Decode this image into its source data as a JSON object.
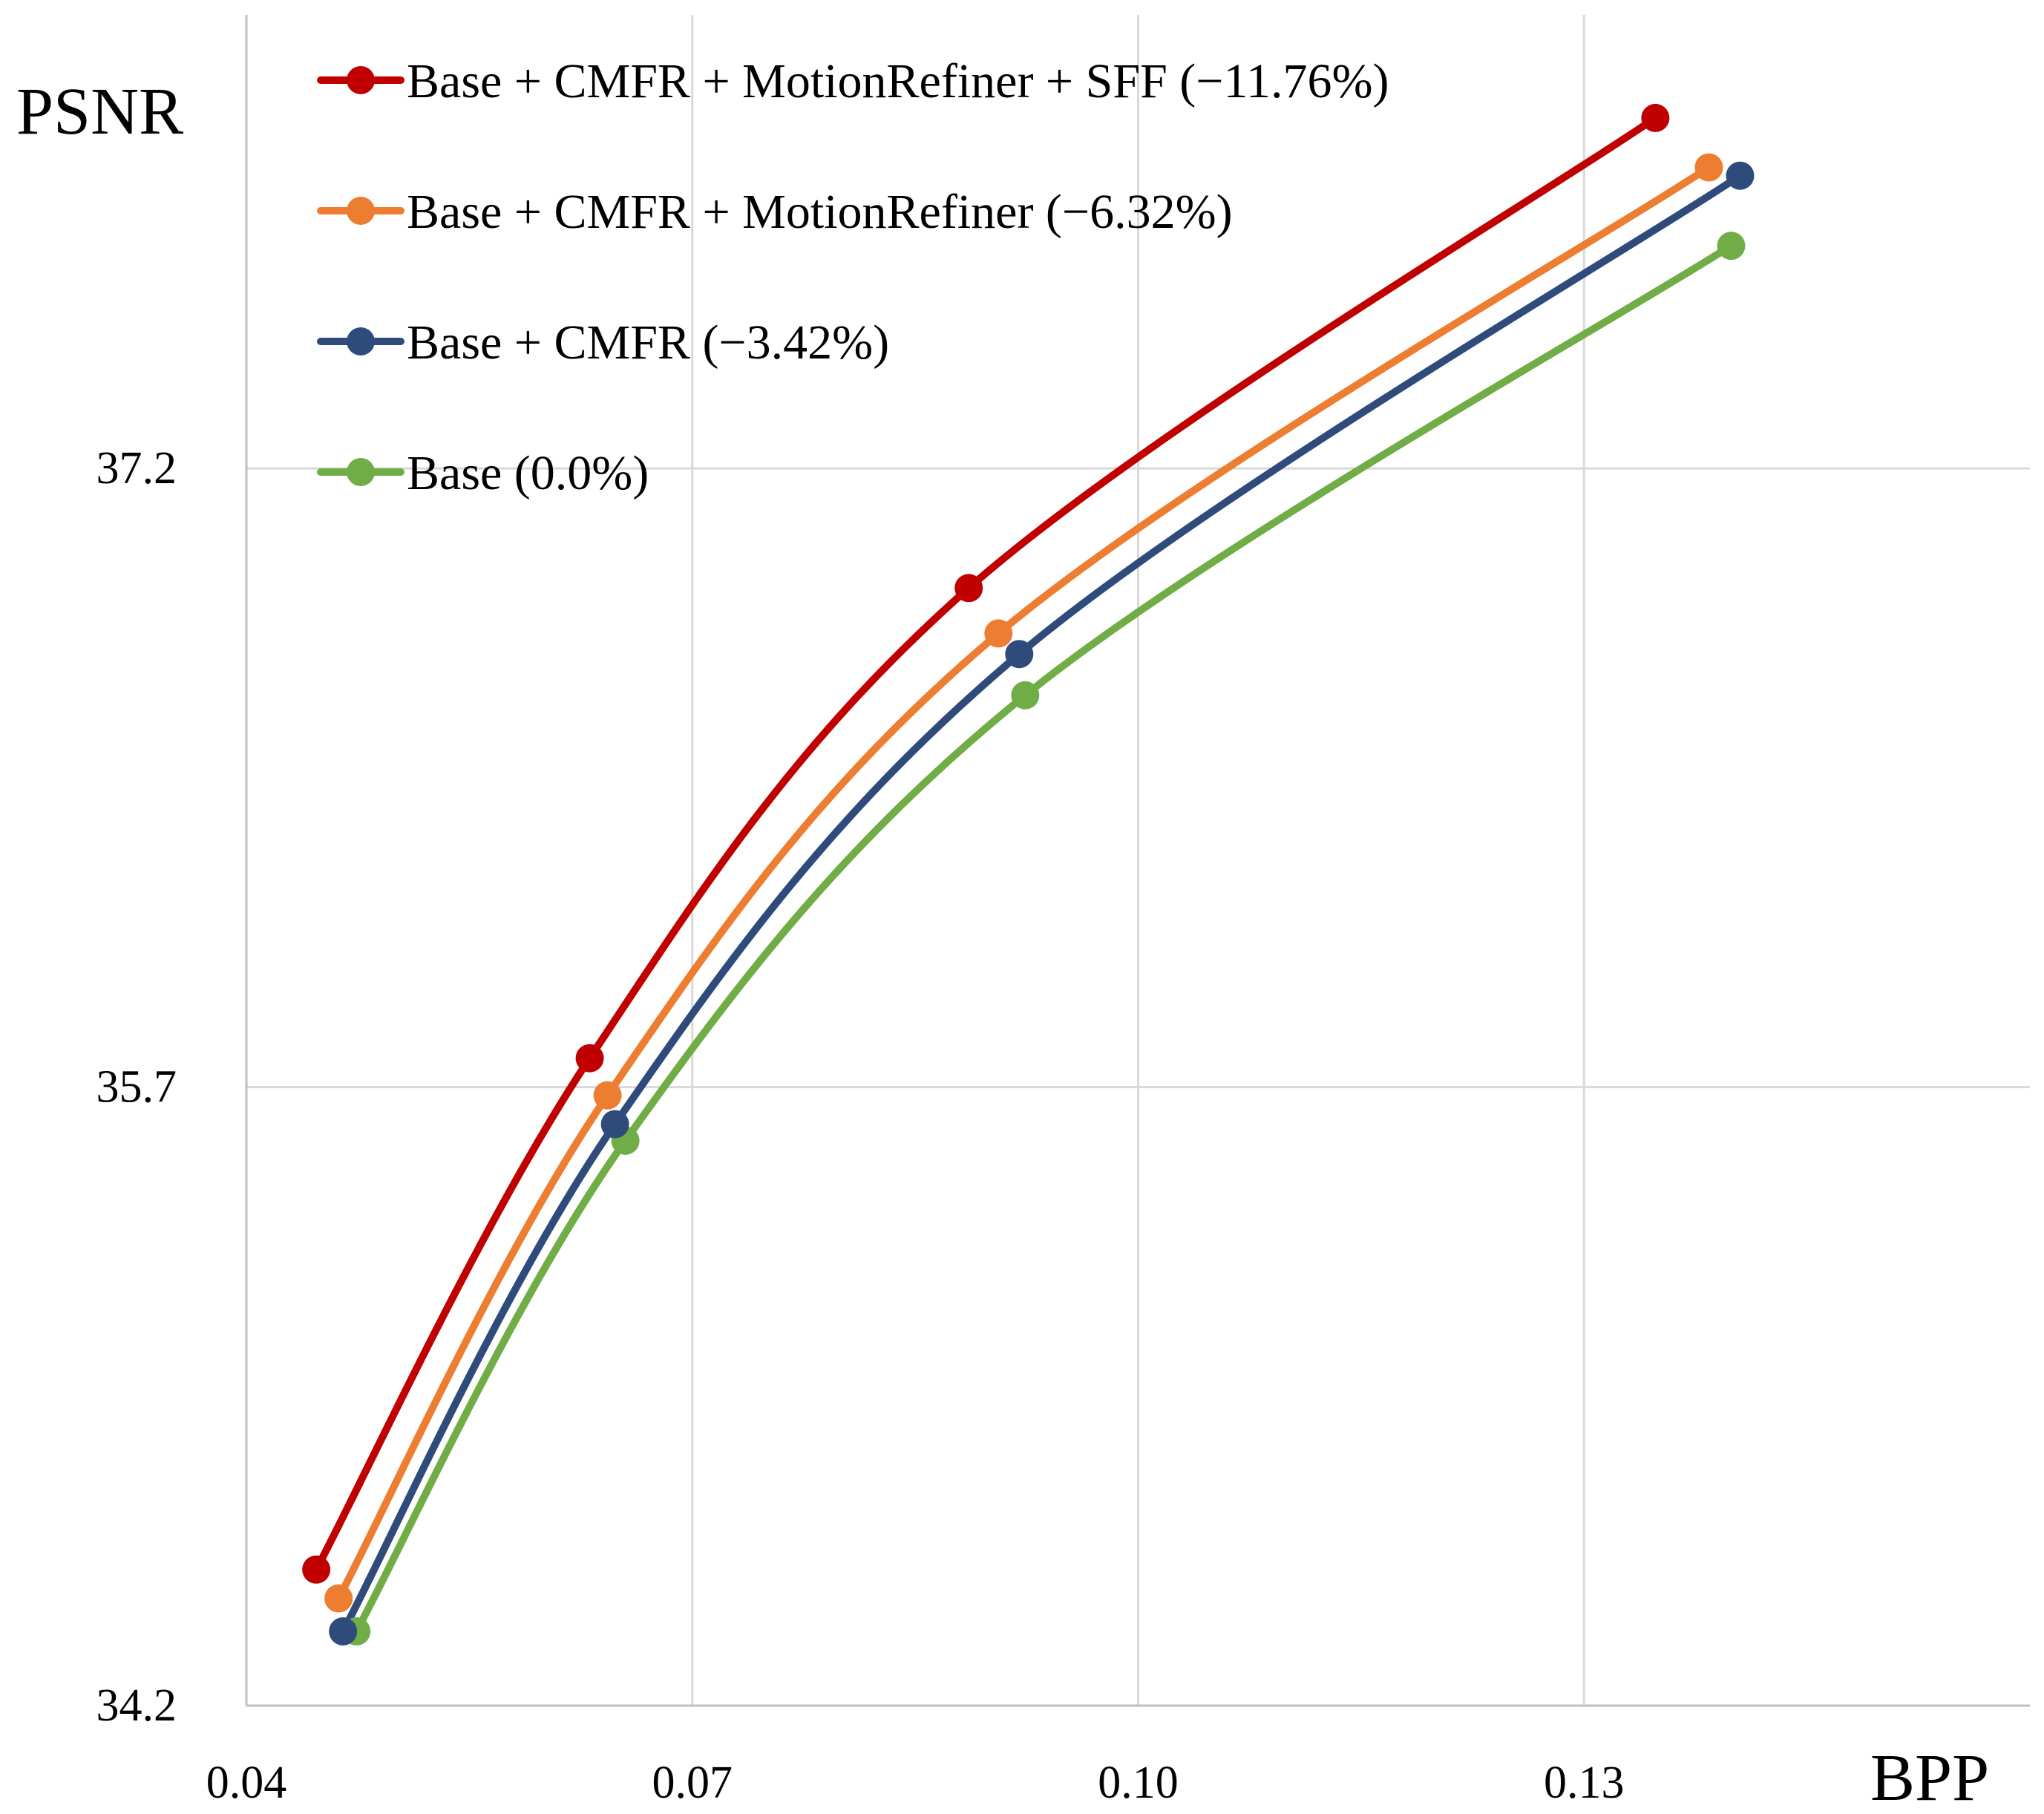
{
  "chart_data": {
    "type": "line",
    "title": "",
    "xlabel": "BPP",
    "ylabel": "PSNR",
    "xlim": [
      0.04,
      0.16
    ],
    "ylim": [
      34.2,
      38.3
    ],
    "x_ticks": [
      0.04,
      0.07,
      0.1,
      0.13
    ],
    "x_tick_labels": [
      "0.04",
      "0.07",
      "0.10",
      "0.13"
    ],
    "y_ticks": [
      34.2,
      35.7,
      37.2
    ],
    "y_tick_labels": [
      "34.2",
      "35.7",
      "37.2"
    ],
    "grid": true,
    "legend_position": "top-left",
    "series": [
      {
        "name": "Base + CMFR + MotionRefiner + SFF (−11.76%)",
        "color": "#c00000",
        "x": [
          0.0447,
          0.0631,
          0.0886,
          0.1348
        ],
        "y": [
          34.53,
          35.77,
          36.91,
          38.05
        ]
      },
      {
        "name": "Base + CMFR + MotionRefiner (−6.32%)",
        "color": "#ed7d31",
        "x": [
          0.0462,
          0.0643,
          0.0906,
          0.1384
        ],
        "y": [
          34.46,
          35.68,
          36.8,
          37.93
        ]
      },
      {
        "name": "Base + CMFR (−3.42%)",
        "color": "#2f4b7c",
        "x": [
          0.0465,
          0.0648,
          0.092,
          0.1405
        ],
        "y": [
          34.38,
          35.61,
          36.75,
          37.91
        ]
      },
      {
        "name": "Base (0.0%)",
        "color": "#70ad47",
        "x": [
          0.0474,
          0.0655,
          0.0924,
          0.1399
        ],
        "y": [
          34.38,
          35.57,
          36.65,
          37.74
        ]
      }
    ]
  }
}
